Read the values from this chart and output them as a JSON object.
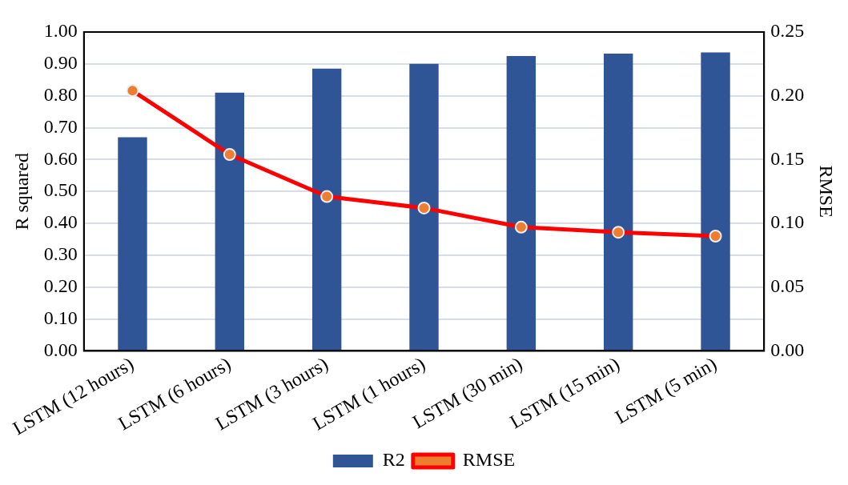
{
  "chart_data": {
    "type": "bar",
    "categories": [
      "LSTM (12 hours)",
      "LSTM (6 hours)",
      "LSTM (3 hours)",
      "LSTM (1 hours)",
      "LSTM (30 min)",
      "LSTM (15 min)",
      "LSTM (5 min)"
    ],
    "series": [
      {
        "name": "R2",
        "color": "#2f5597",
        "values": [
          0.67,
          0.81,
          0.885,
          0.9,
          0.925,
          0.932,
          0.936
        ]
      },
      {
        "name": "RMSE",
        "type": "line",
        "axis": "y2",
        "color": "#ff0000",
        "values": [
          0.204,
          0.154,
          0.121,
          0.112,
          0.097,
          0.093,
          0.09
        ]
      }
    ],
    "ylabel": "R squared",
    "y2label": "RMSE",
    "ylim": [
      0,
      1
    ],
    "yticks": [
      {
        "value": 0,
        "label": "0.00"
      },
      {
        "value": 0.1,
        "label": "0.10"
      },
      {
        "value": 0.2,
        "label": "0.20"
      },
      {
        "value": 0.3,
        "label": "0.30"
      },
      {
        "value": 0.4,
        "label": "0.40"
      },
      {
        "value": 0.5,
        "label": "0.50"
      },
      {
        "value": 0.6,
        "label": "0.60"
      },
      {
        "value": 0.7,
        "label": "0.70"
      },
      {
        "value": 0.8,
        "label": "0.80"
      },
      {
        "value": 0.9,
        "label": "0.90"
      },
      {
        "value": 1,
        "label": "1.00"
      }
    ],
    "y2lim": [
      0,
      0.25
    ],
    "y2ticks": [
      {
        "value": 0,
        "label": "0.00"
      },
      {
        "value": 0.05,
        "label": "0.05"
      },
      {
        "value": 0.1,
        "label": "0.10"
      },
      {
        "value": 0.15,
        "label": "0.15"
      },
      {
        "value": 0.2,
        "label": "0.20"
      },
      {
        "value": 0.25,
        "label": "0.25"
      }
    ],
    "grid": "y",
    "legend": "bottom",
    "marker": "circle"
  }
}
